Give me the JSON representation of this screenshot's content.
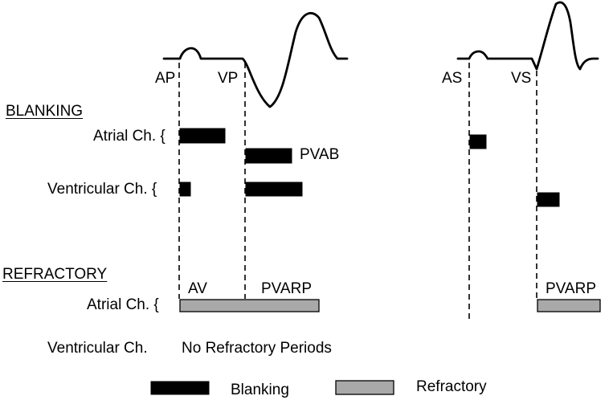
{
  "markers": {
    "ap": "AP",
    "vp": "VP",
    "as": "AS",
    "vs": "VS"
  },
  "sections": {
    "blanking_heading": "BLANKING",
    "refractory_heading": "REFRACTORY"
  },
  "rows": {
    "blanking_atrial": "Atrial Ch. {",
    "blanking_ventricular": "Ventricular Ch. {",
    "refractory_atrial": "Atrial Ch. {",
    "refractory_ventricular": "Ventricular Ch."
  },
  "bar_labels": {
    "pvab": "PVAB",
    "av": "AV",
    "pvarp_paced": "PVARP",
    "pvarp_sensed": "PVARP"
  },
  "note": "No Refractory Periods",
  "legend": {
    "blanking": "Blanking",
    "refractory": "Refractory"
  },
  "colors": {
    "blanking": "#000000",
    "refractory": "#a9a9a9",
    "waveform": "#000000"
  }
}
